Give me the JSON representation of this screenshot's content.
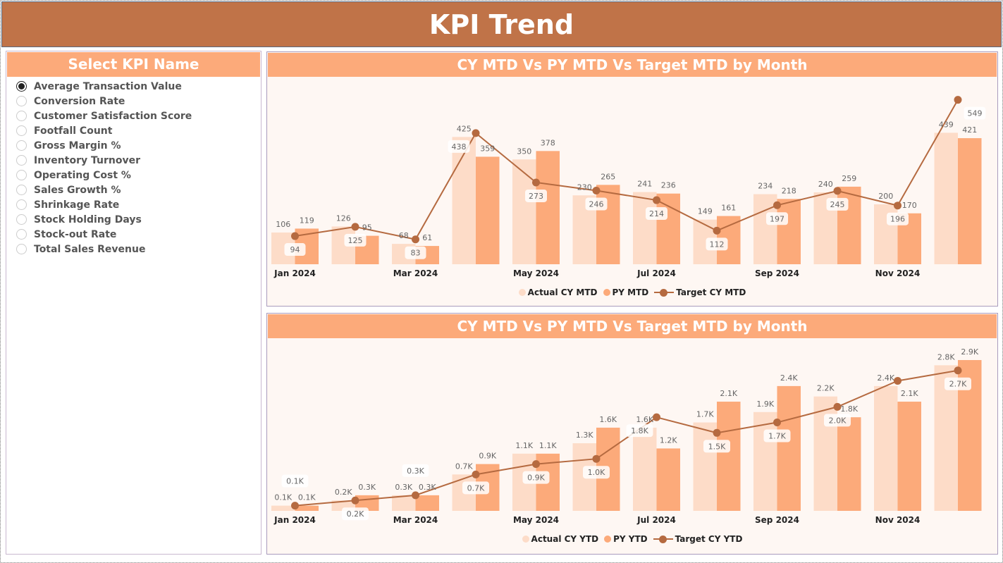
{
  "title": "KPI Trend",
  "slicer": {
    "title": "Select KPI Name",
    "selected": "Average Transaction Value",
    "items": [
      "Average Transaction Value",
      "Conversion Rate",
      "Customer Satisfaction Score",
      "Footfall Count",
      "Gross Margin %",
      "Inventory Turnover",
      "Operating Cost %",
      "Sales Growth %",
      "Shrinkage Rate",
      "Stock Holding Days",
      "Stock-out Rate",
      "Total Sales Revenue"
    ]
  },
  "colors": {
    "actual": "#FDDCC8",
    "py": "#FCAA7A",
    "target": "#B56A40",
    "header": "#C07348"
  },
  "chart_data": [
    {
      "type": "bar+line",
      "title": "CY MTD Vs PY MTD Vs Target MTD by Month",
      "categories": [
        "Jan 2024",
        "Feb 2024",
        "Mar 2024",
        "Apr 2024",
        "May 2024",
        "Jun 2024",
        "Jul 2024",
        "Aug 2024",
        "Sep 2024",
        "Oct 2024",
        "Nov 2024",
        "Dec 2024"
      ],
      "tick_labels": [
        "Jan 2024",
        "",
        "Mar 2024",
        "",
        "May 2024",
        "",
        "Jul 2024",
        "",
        "Sep 2024",
        "",
        "Nov 2024",
        ""
      ],
      "series": [
        {
          "name": "Actual CY MTD",
          "type": "bar",
          "values": [
            106,
            126,
            68,
            425,
            350,
            230,
            241,
            149,
            234,
            240,
            200,
            439
          ]
        },
        {
          "name": "PY MTD",
          "type": "bar",
          "values": [
            119,
            95,
            61,
            359,
            378,
            265,
            236,
            161,
            218,
            259,
            170,
            421
          ]
        },
        {
          "name": "Target CY MTD",
          "type": "line",
          "values": [
            94,
            125,
            83,
            438,
            273,
            246,
            214,
            112,
            197,
            245,
            196,
            549
          ]
        }
      ],
      "legend": "bottom-center",
      "grid": false
    },
    {
      "type": "bar+line",
      "title": "CY MTD Vs PY MTD Vs Target MTD by Month",
      "unit": "K",
      "categories": [
        "Jan 2024",
        "Feb 2024",
        "Mar 2024",
        "Apr 2024",
        "May 2024",
        "Jun 2024",
        "Jul 2024",
        "Aug 2024",
        "Sep 2024",
        "Oct 2024",
        "Nov 2024",
        "Dec 2024"
      ],
      "tick_labels": [
        "Jan 2024",
        "",
        "Mar 2024",
        "",
        "May 2024",
        "",
        "Jul 2024",
        "",
        "Sep 2024",
        "",
        "Nov 2024",
        ""
      ],
      "series": [
        {
          "name": "Actual CY YTD",
          "type": "bar",
          "values": [
            0.1,
            0.2,
            0.3,
            0.7,
            1.1,
            1.3,
            1.6,
            1.7,
            1.9,
            2.2,
            2.4,
            2.8
          ],
          "labels": [
            "0.1K",
            "0.2K",
            "0.3K",
            "0.7K",
            "1.1K",
            "1.3K",
            "1.6K",
            "1.7K",
            "1.9K",
            "2.2K",
            "2.4K",
            "2.8K"
          ]
        },
        {
          "name": "PY YTD",
          "type": "bar",
          "values": [
            0.1,
            0.3,
            0.3,
            0.9,
            1.1,
            1.6,
            1.2,
            2.1,
            2.4,
            1.8,
            2.1,
            2.9
          ],
          "labels": [
            "0.1K",
            "0.3K",
            "0.3K",
            "0.9K",
            "1.1K",
            "1.6K",
            "1.2K",
            "2.1K",
            "2.4K",
            "1.8K",
            "2.1K",
            "2.9K"
          ]
        },
        {
          "name": "Target CY YTD",
          "type": "line",
          "values": [
            0.1,
            0.2,
            0.3,
            0.7,
            0.9,
            1.0,
            1.8,
            1.5,
            1.7,
            2.0,
            2.5,
            2.7
          ],
          "labels": [
            "0.1K",
            "0.2K",
            "0.3K",
            "0.7K",
            "0.9K",
            "1.0K",
            "1.8K",
            "1.5K",
            "1.7K",
            "2.0K",
            "",
            "2.7K"
          ]
        }
      ],
      "legend": "bottom-center",
      "grid": false
    }
  ]
}
